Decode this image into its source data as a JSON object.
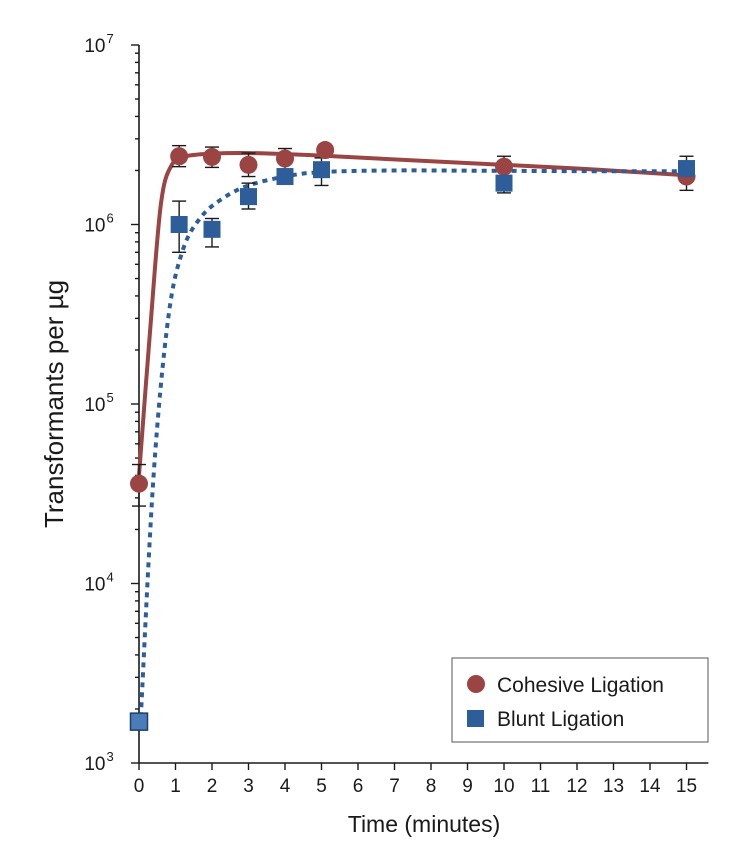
{
  "chart_data": {
    "type": "scatter",
    "title": "",
    "xlabel": "Time (minutes)",
    "ylabel": "Transformants per µg",
    "xlim": [
      0,
      15.6
    ],
    "ylim": [
      1000,
      10000000
    ],
    "yscale": "log",
    "x_ticks": [
      "0",
      "1",
      "2",
      "3",
      "4",
      "5",
      "6",
      "7",
      "8",
      "9",
      "10",
      "11",
      "12",
      "13",
      "14",
      "15"
    ],
    "y_ticks": [
      {
        "base": "10",
        "exp": "3",
        "value": 1000
      },
      {
        "base": "10",
        "exp": "4",
        "value": 10000
      },
      {
        "base": "10",
        "exp": "5",
        "value": 100000
      },
      {
        "base": "10",
        "exp": "6",
        "value": 1000000
      },
      {
        "base": "10",
        "exp": "7",
        "value": 10000000
      }
    ],
    "grid": false,
    "legend_position": "bottom-right",
    "series": [
      {
        "name": "Cohesive Ligation",
        "marker": "circle",
        "color": "#9b4444",
        "line_style": "solid",
        "points": [
          {
            "x": 0,
            "y": 36000,
            "err_low": 27000,
            "err_high": 46000
          },
          {
            "x": 1.1,
            "y": 2400000,
            "err_low": 2100000,
            "err_high": 2750000
          },
          {
            "x": 2,
            "y": 2380000,
            "err_low": 2080000,
            "err_high": 2700000
          },
          {
            "x": 3,
            "y": 2150000,
            "err_low": 1850000,
            "err_high": 2500000
          },
          {
            "x": 4,
            "y": 2330000,
            "err_low": 2030000,
            "err_high": 2650000
          },
          {
            "x": 5.1,
            "y": 2600000,
            "err_low": 2600000,
            "err_high": 2600000
          },
          {
            "x": 10,
            "y": 2100000,
            "err_low": 1780000,
            "err_high": 2400000
          },
          {
            "x": 15,
            "y": 1850000,
            "err_low": 1550000,
            "err_high": 2150000
          }
        ]
      },
      {
        "name": "Blunt Ligation",
        "marker": "square",
        "color": "#2e5e99",
        "line_style": "dotted",
        "points": [
          {
            "x": 0,
            "y": 1700,
            "err_low": 1700,
            "err_high": 1700
          },
          {
            "x": 1.1,
            "y": 1000000,
            "err_low": 700000,
            "err_high": 1350000
          },
          {
            "x": 2,
            "y": 940000,
            "err_low": 750000,
            "err_high": 1080000
          },
          {
            "x": 3,
            "y": 1430000,
            "err_low": 1220000,
            "err_high": 1700000
          },
          {
            "x": 4,
            "y": 1850000,
            "err_low": 1850000,
            "err_high": 1850000
          },
          {
            "x": 5,
            "y": 2020000,
            "err_low": 1650000,
            "err_high": 2350000
          },
          {
            "x": 10,
            "y": 1700000,
            "err_low": 1500000,
            "err_high": 2000000
          },
          {
            "x": 15,
            "y": 2050000,
            "err_low": 1750000,
            "err_high": 2400000
          }
        ]
      }
    ]
  }
}
